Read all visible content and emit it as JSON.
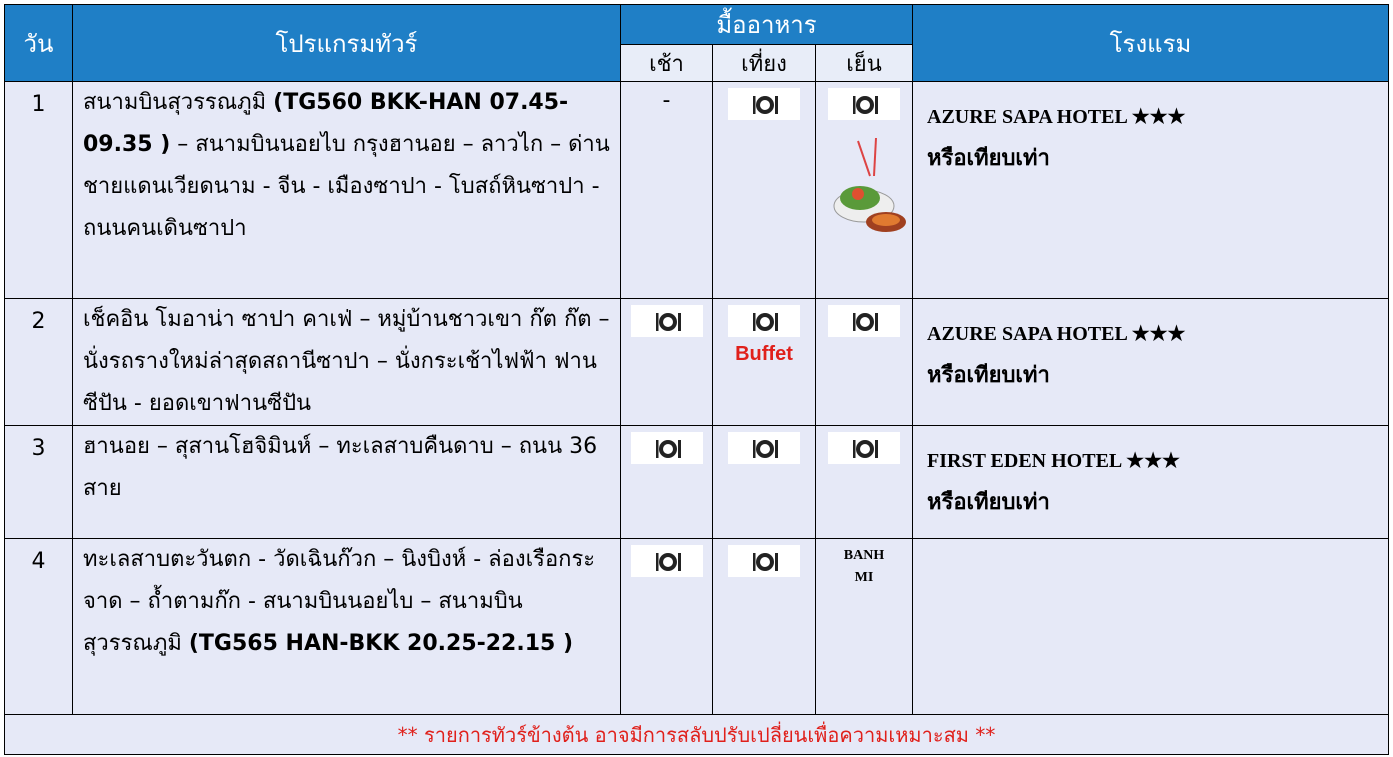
{
  "header": {
    "day": "วัน",
    "program": "โปรแกรมทัวร์",
    "meals": "มื้ออาหาร",
    "hotel": "โรงแรม",
    "meal_names": [
      "เช้า",
      "เที่ยง",
      "เย็น"
    ]
  },
  "table": {
    "rows": [
      {
        "day": "1",
        "program": [
          {
            "text": "สนามบินสุวรรณภูมิ ",
            "bold": false
          },
          {
            "text": "(TG560 BKK-HAN 07.45-09.35 )",
            "bold": true
          },
          {
            "text": " – สนามบินนอยไบ กรุงฮานอย – ลาวไก – ด่านชายแดนเวียดนาม - จีน - เมืองซาปา - โบสถ์หินซาปา - ถนนคนเดินซาปา",
            "bold": false
          }
        ],
        "meals": [
          "-",
          null,
          null
        ],
        "hotel": "AZURE SAPA HOTEL ★★★",
        "hotel_note": "หรือเทียบเท่า"
      },
      {
        "day": "2",
        "program": [
          {
            "text": "เช็คอิน โมอาน่า ซาปา คาเฟ่ – หมู่บ้านชาวเขา ก๊ต ก๊ต  – นั่งรถรางใหม่ล่าสุดสถานีซาปา – นั่งกระเช้าไฟฟ้า ฟานซีปัน - ยอดเขาฟานซีปัน",
            "bold": false
          }
        ],
        "meals": [
          null,
          "Buffet",
          null
        ],
        "hotel": "AZURE SAPA HOTEL ★★★",
        "hotel_note": "หรือเทียบเท่า"
      },
      {
        "day": "3",
        "program": [
          {
            "text": "ฮานอย – สุสานโฮจิมินห์ – ทะเลสาบคืนดาบ – ถนน 36 สาย",
            "bold": false
          }
        ],
        "meals": [
          null,
          null,
          null
        ],
        "hotel": "FIRST EDEN HOTEL ★★★",
        "hotel_note": "หรือเทียบเท่า"
      },
      {
        "day": "4",
        "program": [
          {
            "text": "ทะเลสาบตะวันตก - วัดเฉินก๊วก – นิงบิงห์ - ล่องเรือกระจาด – ถ้ำตามก๊ก - สนามบินนอยไบ – สนามบินสุวรรณภูมิ ",
            "bold": false
          },
          {
            "text": "(TG565 HAN-BKK 20.25-22.15 )",
            "bold": true
          }
        ],
        "meals": [
          null,
          null,
          "BANH MI"
        ],
        "hotel": null,
        "hotel_note": null
      }
    ]
  },
  "footer": {
    "note": "** รายการทัวร์ข้างต้น อาจมีการสลับปรับเปลี่ยนเพื่อความเหมาะสม **"
  }
}
